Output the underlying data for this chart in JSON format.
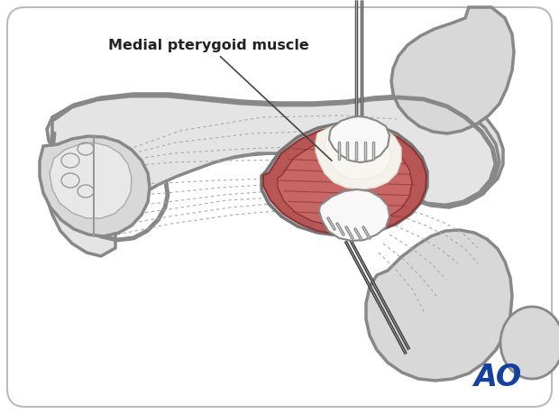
{
  "bg_color": "#ffffff",
  "card_color": "#ffffff",
  "border_color": "#bbbbbb",
  "anatomy_fill": "#d8d8d8",
  "anatomy_stroke": "#8a8a8a",
  "anatomy_stroke_thick": "#888888",
  "muscle_red_outer": "#b85050",
  "muscle_red_inner": "#c96060",
  "muscle_pink": "#d4857a",
  "bone_white": "#f0ede5",
  "skin_outer": "#c8c8c8",
  "retractor_fill": "#f0f0f0",
  "retractor_stroke": "#888888",
  "handle_dark": "#333333",
  "handle_light": "#888888",
  "label_text": "Medial pterygoid muscle",
  "label_fontsize": 11.5,
  "ao_color": "#1440a0",
  "ao_fontsize": 24,
  "dashed_color": "#aaaaaa",
  "line_color": "#555555"
}
